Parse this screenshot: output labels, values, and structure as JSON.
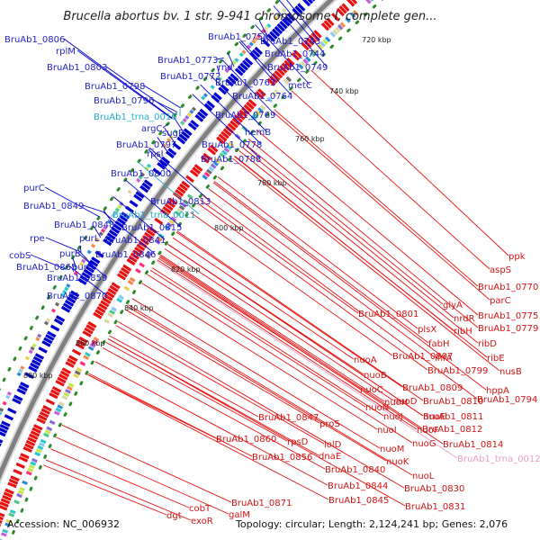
{
  "title": "Brucella abortus bv. 1 str. 9-941 chromosome I, complete gen...",
  "footer": {
    "accession": "Accession: NC_006932",
    "summary": "Topology: circular; Length: 2,124,241 bp; Genes: 2,076"
  },
  "colors": {
    "forward": "#0000d0",
    "reverse": "#e81010",
    "trna_forward": "#22aacc",
    "trna_reverse": "#e8a0c8",
    "backbone": "#808080",
    "tick_dots": "#2a8a2a"
  },
  "ticks": [
    "720 kbp",
    "740 kbp",
    "760 kbp",
    "780 kbp",
    "800 kbp",
    "820 kbp",
    "840 kbp",
    "860 kbp",
    "880 kbp"
  ],
  "labels_forward": [
    "BruAb1_0806",
    "rplM",
    "BruAb1_0803",
    "BruAb1_0798",
    "BruAb1_0796",
    "BruAb1_trna_0010",
    "argC",
    "sugE",
    "BruAb1_0797",
    "rpsI",
    "BruAb1_0800",
    "BruAb1_0754",
    "BruAb1_0743",
    "BruAb1_0744",
    "BruAb1_0749",
    "BruAb1_0773",
    "rnd",
    "BruAb1_0772",
    "BruAb1_0763",
    "metC",
    "BruAb1_0764",
    "BruAb1_0769",
    "hemB",
    "BruAb1_0778",
    "BruAb1_0788",
    "purC",
    "BruAb1_0849",
    "BruAb1_0848",
    "rpe",
    "purL",
    "cobS",
    "purB",
    "BruAb1_0846",
    "BruAb1_0865",
    "purQ",
    "BruAb1_0859",
    "BruAb1_0870",
    "BruAb1_0813",
    "BruAb1_trna_0011",
    "BruAb1_0815",
    "BruAb1_0841"
  ],
  "labels_reverse": [
    "ppk",
    "aspS",
    "BruAb1_0770",
    "parC",
    "glyA",
    "BruAb1_0775",
    "nrdR",
    "BruAb1_0779",
    "ribH",
    "BruAb1_0801",
    "plsX",
    "ribD",
    "fabH",
    "ribE",
    "nuoA",
    "BruAb1_0807",
    "ihfA",
    "nusB",
    "nuoB",
    "BruAb1_0799",
    "hppA",
    "nuoC",
    "BruAb1_0809",
    "BruAb1_0794",
    "nuoN",
    "nuoH",
    "nuoD",
    "BruAb1_0810",
    "nuoJ",
    "nuoE",
    "BruAb1_0811",
    "BruAb1_0847",
    "proS",
    "nuoI",
    "nuoF",
    "BruAb1_0812",
    "BruAb1_0860",
    "rpsD",
    "lolD",
    "nuoM",
    "nuoG",
    "BruAb1_0814",
    "BruAb1_trna_0012",
    "BruAb1_0856",
    "dnaE",
    "nuoK",
    "BruAb1_0840",
    "nuoL",
    "BruAb1_0844",
    "BruAb1_0830",
    "galM",
    "BruAb1_0845",
    "BruAb1_0831",
    "BruAb1_0871",
    "cobT",
    "dgt",
    "exoR"
  ]
}
